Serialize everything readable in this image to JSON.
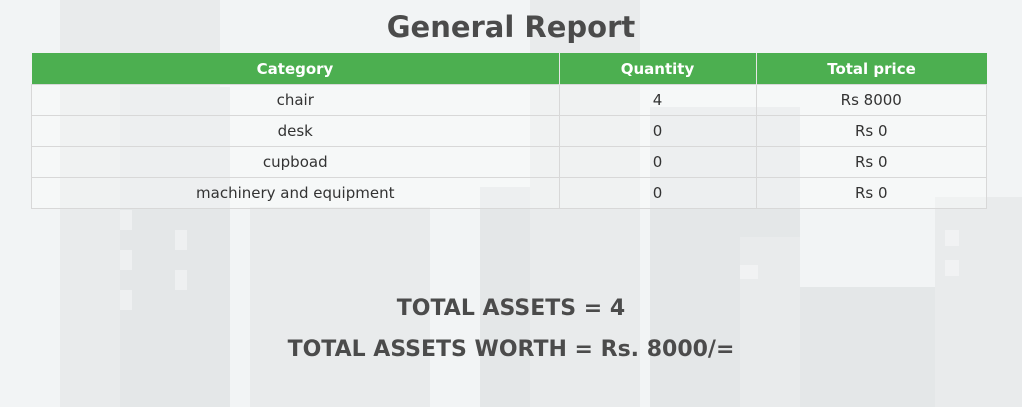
{
  "report": {
    "title": "General Report",
    "columns": [
      "Category",
      "Quantity",
      "Total price"
    ],
    "rows": [
      {
        "category": "chair",
        "quantity": "4",
        "total_price": "Rs 8000"
      },
      {
        "category": "desk",
        "quantity": "0",
        "total_price": "Rs 0"
      },
      {
        "category": "cupboad",
        "quantity": "0",
        "total_price": "Rs 0"
      },
      {
        "category": "machinery and equipment",
        "quantity": "0",
        "total_price": "Rs 0"
      }
    ]
  },
  "summary": {
    "total_assets": "TOTAL ASSETS = 4",
    "total_worth": "TOTAL ASSETS WORTH = Rs. 8000/="
  },
  "colors": {
    "header_bg": "#4caf50",
    "header_text": "#ffffff",
    "text": "#333333"
  }
}
